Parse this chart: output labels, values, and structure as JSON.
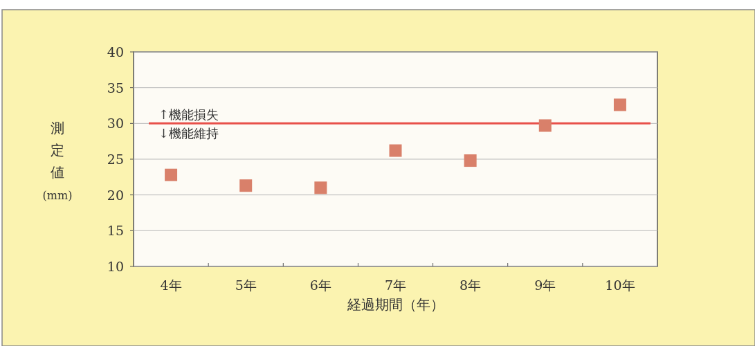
{
  "chart_data": {
    "type": "scatter",
    "xlabel": "経過期間（年）",
    "ylabel": "測定値(mm)",
    "categories": [
      "4年",
      "5年",
      "6年",
      "7年",
      "8年",
      "9年",
      "10年"
    ],
    "values": [
      22.8,
      21.3,
      21.0,
      26.2,
      24.8,
      29.7,
      32.6
    ],
    "color": "#d9806a",
    "marker": "square",
    "ylim": [
      10,
      40
    ],
    "yticks": [
      10,
      15,
      20,
      25,
      30,
      35,
      40
    ],
    "grid": "y",
    "ref_lines": [
      {
        "axis": "y",
        "value": 30,
        "color": "#e8504a"
      }
    ],
    "annotations": [
      "↑機能損失",
      "↓機能維持"
    ]
  }
}
